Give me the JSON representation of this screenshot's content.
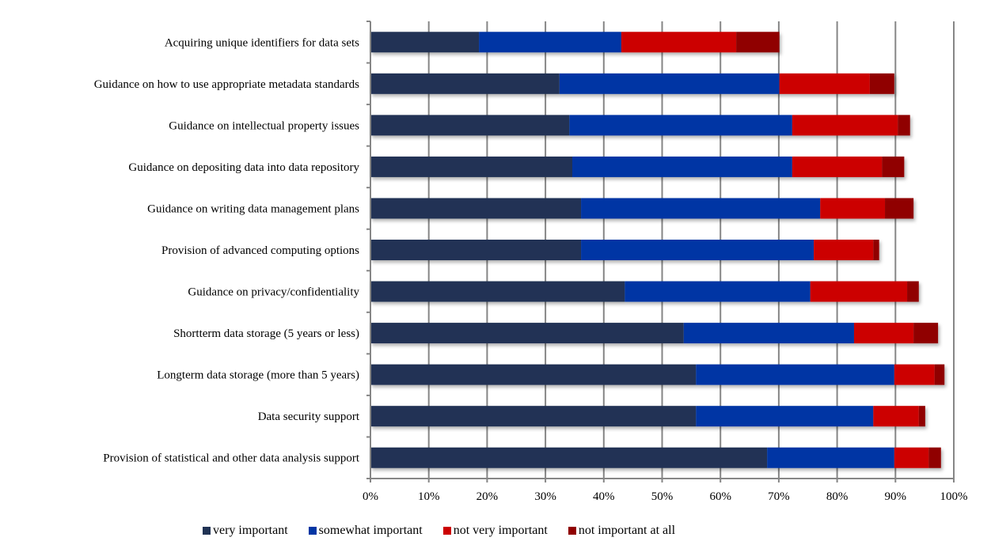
{
  "chart_data": {
    "type": "bar",
    "orientation": "horizontal",
    "stacked": "percent",
    "title": "",
    "xlabel": "",
    "ylabel": "",
    "xlim": [
      0,
      100
    ],
    "x_ticks": [
      "0%",
      "10%",
      "20%",
      "30%",
      "40%",
      "50%",
      "60%",
      "70%",
      "80%",
      "90%",
      "100%"
    ],
    "grid": true,
    "legend_position": "bottom",
    "categories": [
      "Acquiring unique identifiers for data sets",
      "Guidance on how to use appropriate metadata standards",
      "Guidance on intellectual property issues",
      "Guidance on depositing data into data repository",
      "Guidance on writing data management plans",
      "Provision of advanced computing options",
      "Guidance on privacy/confidentiality",
      "Shortterm data storage (5 years or less)",
      "Longterm data storage (more than 5 years)",
      "Data security support",
      "Provision of statistical and other data analysis support"
    ],
    "series": [
      {
        "name": "very important",
        "color": "#203354",
        "values": [
          18.6,
          32.4,
          34.1,
          34.6,
          36.1,
          36.1,
          43.6,
          53.7,
          55.8,
          55.8,
          68.0
        ]
      },
      {
        "name": "somewhat important",
        "color": "#0036A4",
        "values": [
          24.4,
          37.7,
          38.2,
          37.7,
          41.0,
          39.9,
          31.8,
          29.2,
          34.0,
          30.4,
          21.8
        ]
      },
      {
        "name": "not very important",
        "color": "#CC0000",
        "values": [
          19.7,
          15.5,
          18.1,
          15.4,
          11.1,
          10.2,
          16.6,
          10.2,
          6.9,
          7.8,
          5.9
        ]
      },
      {
        "name": "not important at all",
        "color": "#900000",
        "values": [
          7.4,
          4.2,
          2.1,
          3.8,
          4.9,
          1.0,
          2.0,
          4.2,
          1.7,
          1.1,
          2.1
        ]
      }
    ]
  }
}
